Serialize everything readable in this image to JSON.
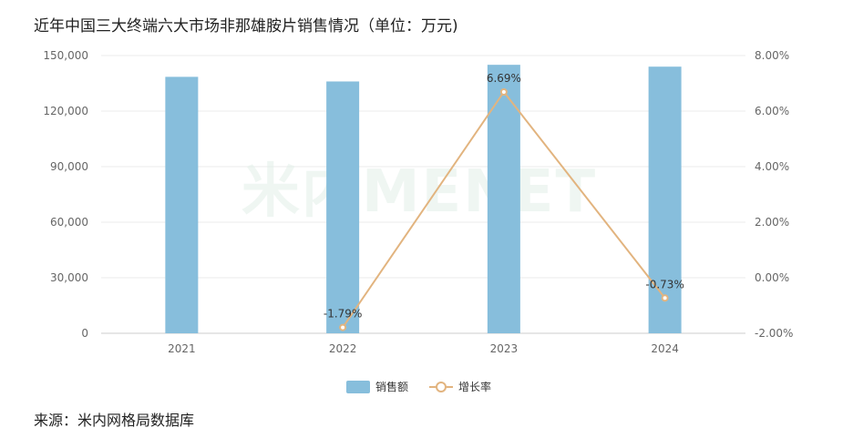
{
  "header": {
    "title": "近年中国三大终端六大市场非那雄胺片销售情况（单位：万元)"
  },
  "footer": {
    "source": "来源：米内网格局数据库"
  },
  "watermark": "米内MENET",
  "chart_data": {
    "type": "bar+line",
    "title": "近年中国三大终端六大市场非那雄胺片销售情况（单位：万元)",
    "categories": [
      "2021",
      "2022",
      "2023",
      "2024"
    ],
    "series": [
      {
        "name": "销售额",
        "type": "bar",
        "axis": "left",
        "color": "#87bedc",
        "values": [
          138500,
          136000,
          145000,
          144000
        ]
      },
      {
        "name": "增长率",
        "type": "line",
        "axis": "right",
        "color": "#e2b47f",
        "values": [
          null,
          -1.79,
          6.69,
          -0.73
        ],
        "labels": [
          "",
          "-1.79%",
          "6.69%",
          "-0.73%"
        ]
      }
    ],
    "y_left": {
      "min": 0,
      "max": 150000,
      "ticks": [
        0,
        30000,
        60000,
        90000,
        120000,
        150000
      ],
      "tick_labels": [
        "0",
        "30,000",
        "60,000",
        "90,000",
        "120,000",
        "150,000"
      ]
    },
    "y_right": {
      "min": -2,
      "max": 8,
      "ticks": [
        -2,
        0,
        2,
        4,
        6,
        8
      ],
      "tick_labels": [
        "-2.00%",
        "0.00%",
        "2.00%",
        "4.00%",
        "6.00%",
        "8.00%"
      ]
    },
    "grid": true,
    "legend": {
      "position": "bottom-center",
      "items": [
        "销售额",
        "增长率"
      ]
    }
  }
}
